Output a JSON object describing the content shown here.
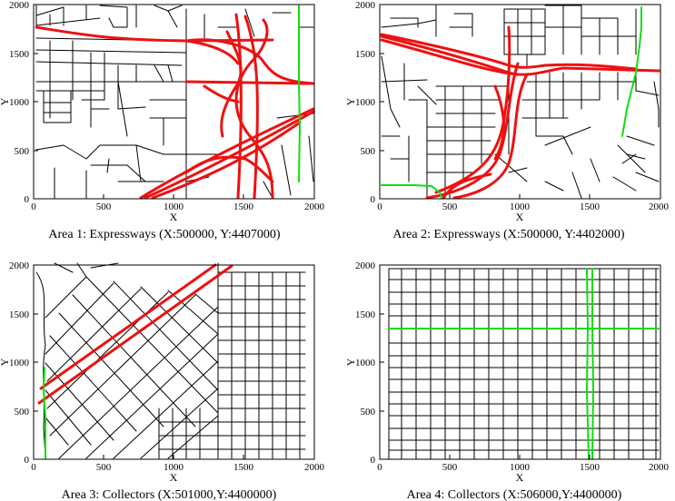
{
  "figure": {
    "colors": {
      "expressway": "#ee1111",
      "collector": "#11dd11",
      "street": "#000000"
    },
    "panels": [
      {
        "id": "area1",
        "caption": "Area 1: Expressways (X:500000, Y:4407000)",
        "xlabel": "X",
        "ylabel": "Y",
        "xticks": [
          "0",
          "500",
          "1000",
          "1500",
          "2000"
        ],
        "yticks": [
          "0",
          "500",
          "1000",
          "1500",
          "2000"
        ],
        "xlim": [
          0,
          2000
        ],
        "ylim": [
          0,
          2000
        ],
        "highlight": "expressway"
      },
      {
        "id": "area2",
        "caption": "Area 2: Expressways (X:500000, Y:4402000)",
        "xlabel": "X",
        "ylabel": "Y",
        "xticks": [
          "0",
          "500",
          "1000",
          "1500",
          "2000"
        ],
        "yticks": [
          "0",
          "500",
          "1000",
          "1500",
          "2000"
        ],
        "xlim": [
          0,
          2000
        ],
        "ylim": [
          0,
          2000
        ],
        "highlight": "expressway"
      },
      {
        "id": "area3",
        "caption": "Area 3: Collectors (X:501000,Y:4400000)",
        "xlabel": "X",
        "ylabel": "Y",
        "xticks": [
          "0",
          "500",
          "1000",
          "1500",
          "2000"
        ],
        "yticks": [
          "0",
          "500",
          "1000",
          "1500",
          "2000"
        ],
        "xlim": [
          0,
          2000
        ],
        "ylim": [
          0,
          2000
        ],
        "highlight": "collector"
      },
      {
        "id": "area4",
        "caption": "Area 4: Collectors (X:506000,Y:4400000)",
        "xlabel": "X",
        "ylabel": "Y",
        "xticks": [
          "0",
          "500",
          "1000",
          "1500",
          "2000"
        ],
        "yticks": [
          "0",
          "500",
          "1000",
          "1500",
          "2000"
        ],
        "xlim": [
          0,
          2000
        ],
        "ylim": [
          0,
          2000
        ],
        "highlight": "collector"
      }
    ]
  }
}
